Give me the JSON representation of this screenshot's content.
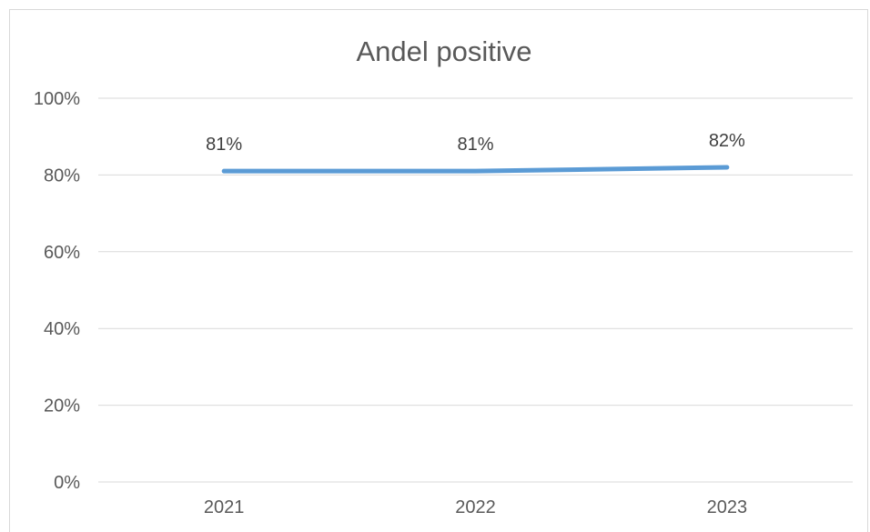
{
  "chart_data": {
    "type": "line",
    "title": "Andel positive",
    "xlabel": "",
    "ylabel": "",
    "categories": [
      "2021",
      "2022",
      "2023"
    ],
    "series": [
      {
        "values": [
          81,
          81,
          82
        ],
        "data_labels": [
          "81%",
          "81%",
          "82%"
        ]
      }
    ],
    "y_ticks": [
      "0%",
      "20%",
      "40%",
      "60%",
      "80%",
      "100%"
    ],
    "ylim": [
      0,
      100
    ],
    "grid": true,
    "legend": "none",
    "colors": {
      "series": "#5b9bd5",
      "grid": "#d9d9d9",
      "text": "#595959"
    }
  }
}
